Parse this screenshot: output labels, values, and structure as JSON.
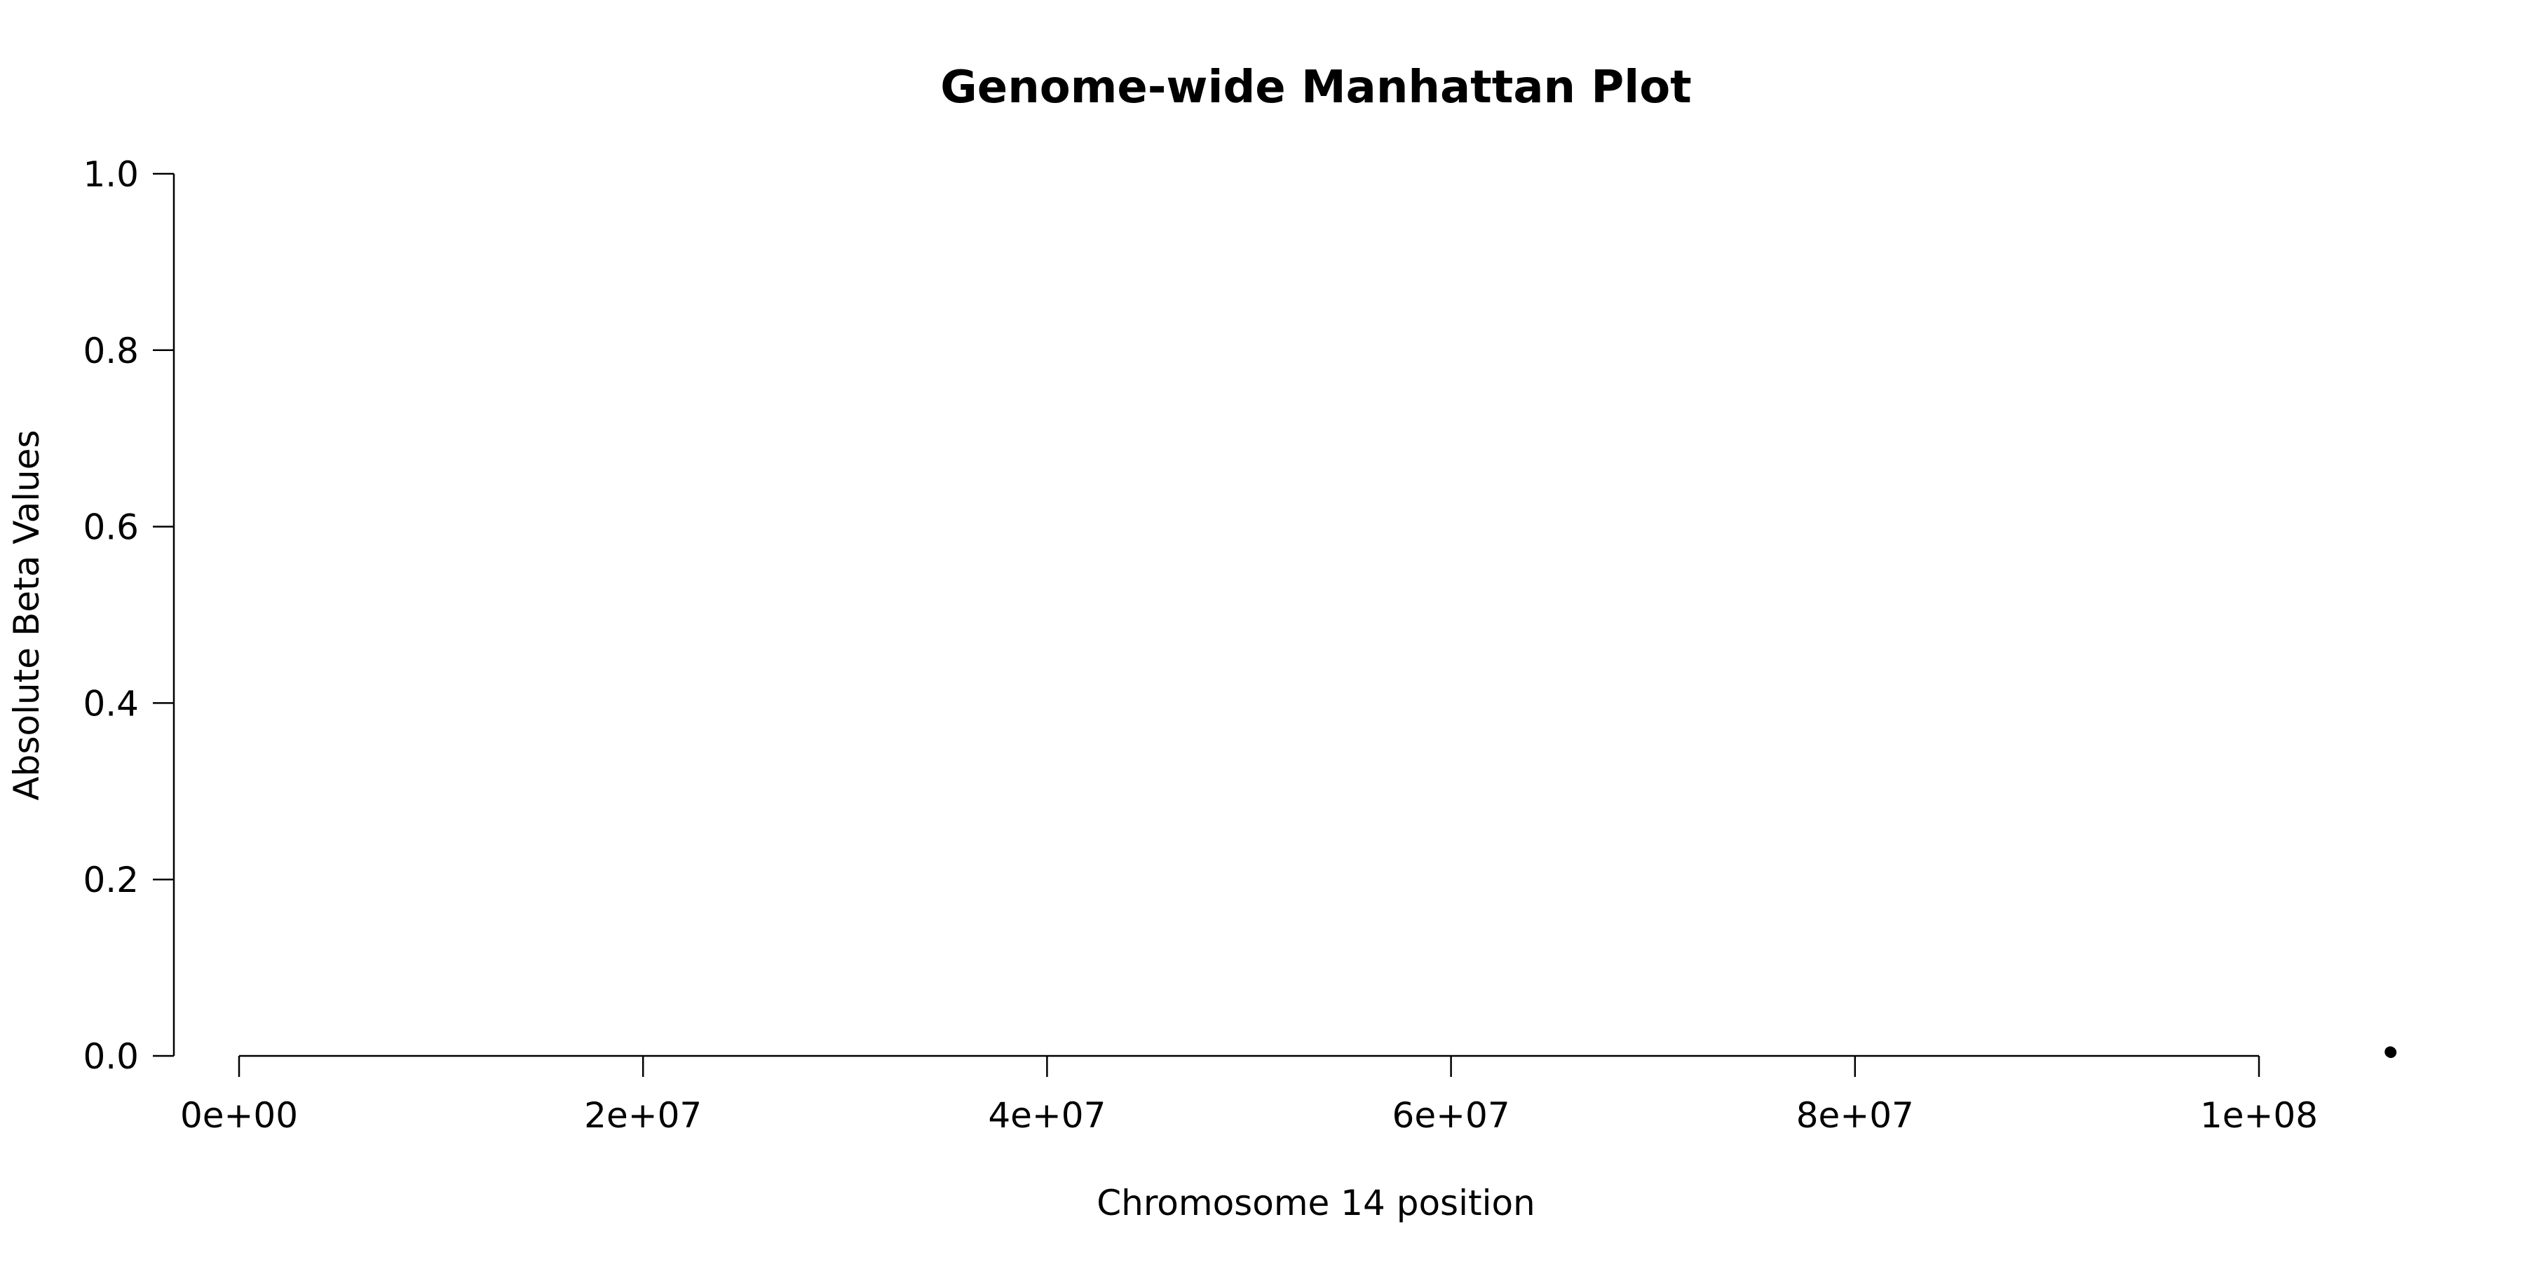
{
  "chart_data": {
    "type": "scatter",
    "title": "Genome-wide Manhattan Plot",
    "xlabel": "Chromosome 14 position",
    "ylabel": "Absolute Beta Values",
    "xlim": [
      0,
      100000000
    ],
    "ylim": [
      0.0,
      1.0
    ],
    "x_ticks": [
      0,
      20000000,
      40000000,
      60000000,
      80000000,
      100000000
    ],
    "x_tick_labels": [
      "0e+00",
      "2e+07",
      "4e+07",
      "6e+07",
      "8e+07",
      "1e+08"
    ],
    "y_ticks": [
      0.0,
      0.2,
      0.4,
      0.6,
      0.8,
      1.0
    ],
    "y_tick_labels": [
      "0.0",
      "0.2",
      "0.4",
      "0.6",
      "0.8",
      "1.0"
    ],
    "grid": false,
    "legend": "none",
    "point_color": "#000000",
    "series": [
      {
        "points": [
          {
            "x": 106500000,
            "y": 0.0045
          },
          {
            "x": 106530000,
            "y": 0.004
          }
        ]
      }
    ]
  }
}
